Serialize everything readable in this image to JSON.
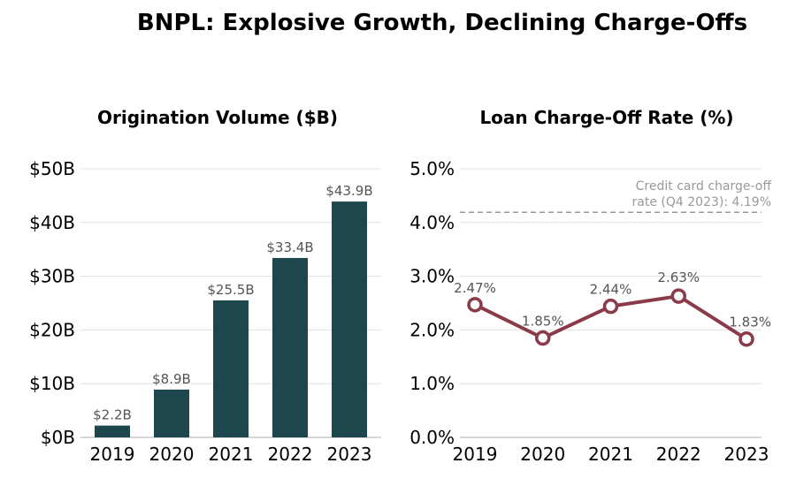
{
  "title": "BNPL: Explosive Growth, Declining Charge-Offs",
  "chart_data": [
    {
      "type": "bar",
      "title": "Origination Volume ($B)",
      "categories": [
        "2019",
        "2020",
        "2021",
        "2022",
        "2023"
      ],
      "values": [
        2.2,
        8.9,
        25.5,
        33.4,
        43.9
      ],
      "data_labels": [
        "$2.2B",
        "$8.9B",
        "$25.5B",
        "$33.4B",
        "$43.9B"
      ],
      "ylim": [
        0,
        50
      ],
      "yticks": [
        0,
        10,
        20,
        30,
        40,
        50
      ],
      "ytick_labels": [
        "$0B",
        "$10B",
        "$20B",
        "$30B",
        "$40B",
        "$50B"
      ],
      "grid": true,
      "color": "#1e474d"
    },
    {
      "type": "line",
      "title": "Loan Charge-Off Rate (%)",
      "categories": [
        "2019",
        "2020",
        "2021",
        "2022",
        "2023"
      ],
      "values": [
        2.47,
        1.85,
        2.44,
        2.63,
        1.83
      ],
      "data_labels": [
        "2.47%",
        "1.85%",
        "2.44%",
        "2.63%",
        "1.83%"
      ],
      "ylim": [
        0,
        5
      ],
      "yticks": [
        0,
        1,
        2,
        3,
        4,
        5
      ],
      "ytick_labels": [
        "0.0%",
        "1.0%",
        "2.0%",
        "3.0%",
        "4.0%",
        "5.0%"
      ],
      "grid": true,
      "color": "#8b3a4a",
      "reference_line": {
        "value": 4.19,
        "label_lines": [
          "Credit card charge-off",
          "rate (Q4 2023): 4.19%"
        ],
        "color": "#999999"
      }
    }
  ]
}
